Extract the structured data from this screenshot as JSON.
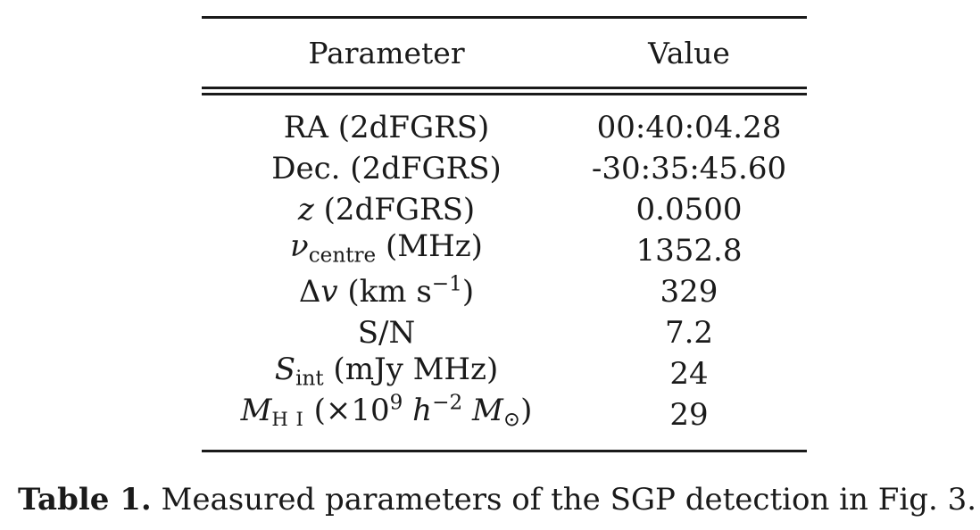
{
  "table": {
    "headers": {
      "parameter": "Parameter",
      "value": "Value"
    },
    "rows": [
      {
        "parameter": {
          "main": "RA (2dFGRS)"
        },
        "value": "00:40:04.28"
      },
      {
        "parameter": {
          "main": "Dec. (2dFGRS)"
        },
        "value": "-30:35:45.60"
      },
      {
        "parameter": {
          "symbol": "z",
          "rest": " (2dFGRS)"
        },
        "value": "0.0500"
      },
      {
        "parameter": {
          "symbol": "ν",
          "sub": "centre",
          "rest": " (MHz)"
        },
        "value": "1352.8"
      },
      {
        "parameter": {
          "symbol_prefix": "Δ",
          "symbol": "v",
          "rest": " (km s",
          "sup": "−1",
          "rest2": ")"
        },
        "value": "329"
      },
      {
        "parameter": {
          "main": "S/N"
        },
        "value": "7.2"
      },
      {
        "parameter": {
          "symbol": "S",
          "sub": "int",
          "rest": " (mJy MHz)"
        },
        "value": "24"
      },
      {
        "parameter": {
          "symbol": "M",
          "sub": "H I",
          "rest": " (×10",
          "sup": "9",
          "symbol2": " h",
          "sup2": "−2",
          "symbol3": " M",
          "sub3": "⊙",
          "rest2": ")"
        },
        "value": "29"
      }
    ]
  },
  "caption": {
    "label": "Table 1.",
    "text": " Measured parameters of the SGP detection in Fig. 3."
  }
}
